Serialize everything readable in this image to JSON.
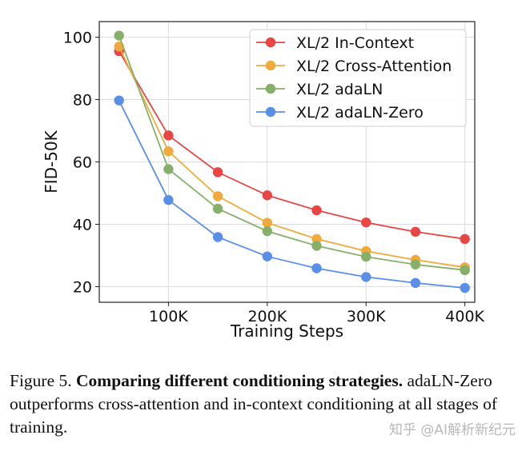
{
  "chart_data": {
    "type": "line",
    "title": "",
    "xlabel": "Training Steps",
    "ylabel": "FID-50K",
    "x": [
      50000,
      100000,
      150000,
      200000,
      250000,
      300000,
      350000,
      400000
    ],
    "xlim": [
      30000,
      410000
    ],
    "ylim": [
      15,
      105
    ],
    "xticks": [
      100000,
      200000,
      300000,
      400000
    ],
    "xtick_labels": [
      "100K",
      "200K",
      "300K",
      "400K"
    ],
    "yticks": [
      20,
      40,
      60,
      80,
      100
    ],
    "ytick_labels": [
      "20",
      "40",
      "60",
      "80",
      "100"
    ],
    "grid": true,
    "legend_position": "top-right",
    "series": [
      {
        "name": "XL/2 In-Context",
        "color": "#e84545",
        "values": [
          95.5,
          68.5,
          56.7,
          49.3,
          44.5,
          40.6,
          37.6,
          35.3
        ]
      },
      {
        "name": "XL/2 Cross-Attention",
        "color": "#f0aa3c",
        "values": [
          97.0,
          63.4,
          49.0,
          40.5,
          35.3,
          31.4,
          28.6,
          26.2
        ]
      },
      {
        "name": "XL/2 adaLN",
        "color": "#86b06a",
        "values": [
          100.5,
          57.7,
          45.0,
          37.8,
          33.1,
          29.6,
          27.1,
          25.3
        ]
      },
      {
        "name": "XL/2 adaLN-Zero",
        "color": "#5a8fe8",
        "values": [
          79.7,
          47.8,
          35.9,
          29.7,
          25.9,
          23.1,
          21.2,
          19.6
        ]
      }
    ]
  },
  "caption": {
    "label": "Figure 5.",
    "bold": "Comparing different conditioning strategies.",
    "text": "adaLN-Zero outperforms cross-attention and in-context conditioning at all stages of training."
  },
  "watermark": "知乎 @AI解析新纪元"
}
